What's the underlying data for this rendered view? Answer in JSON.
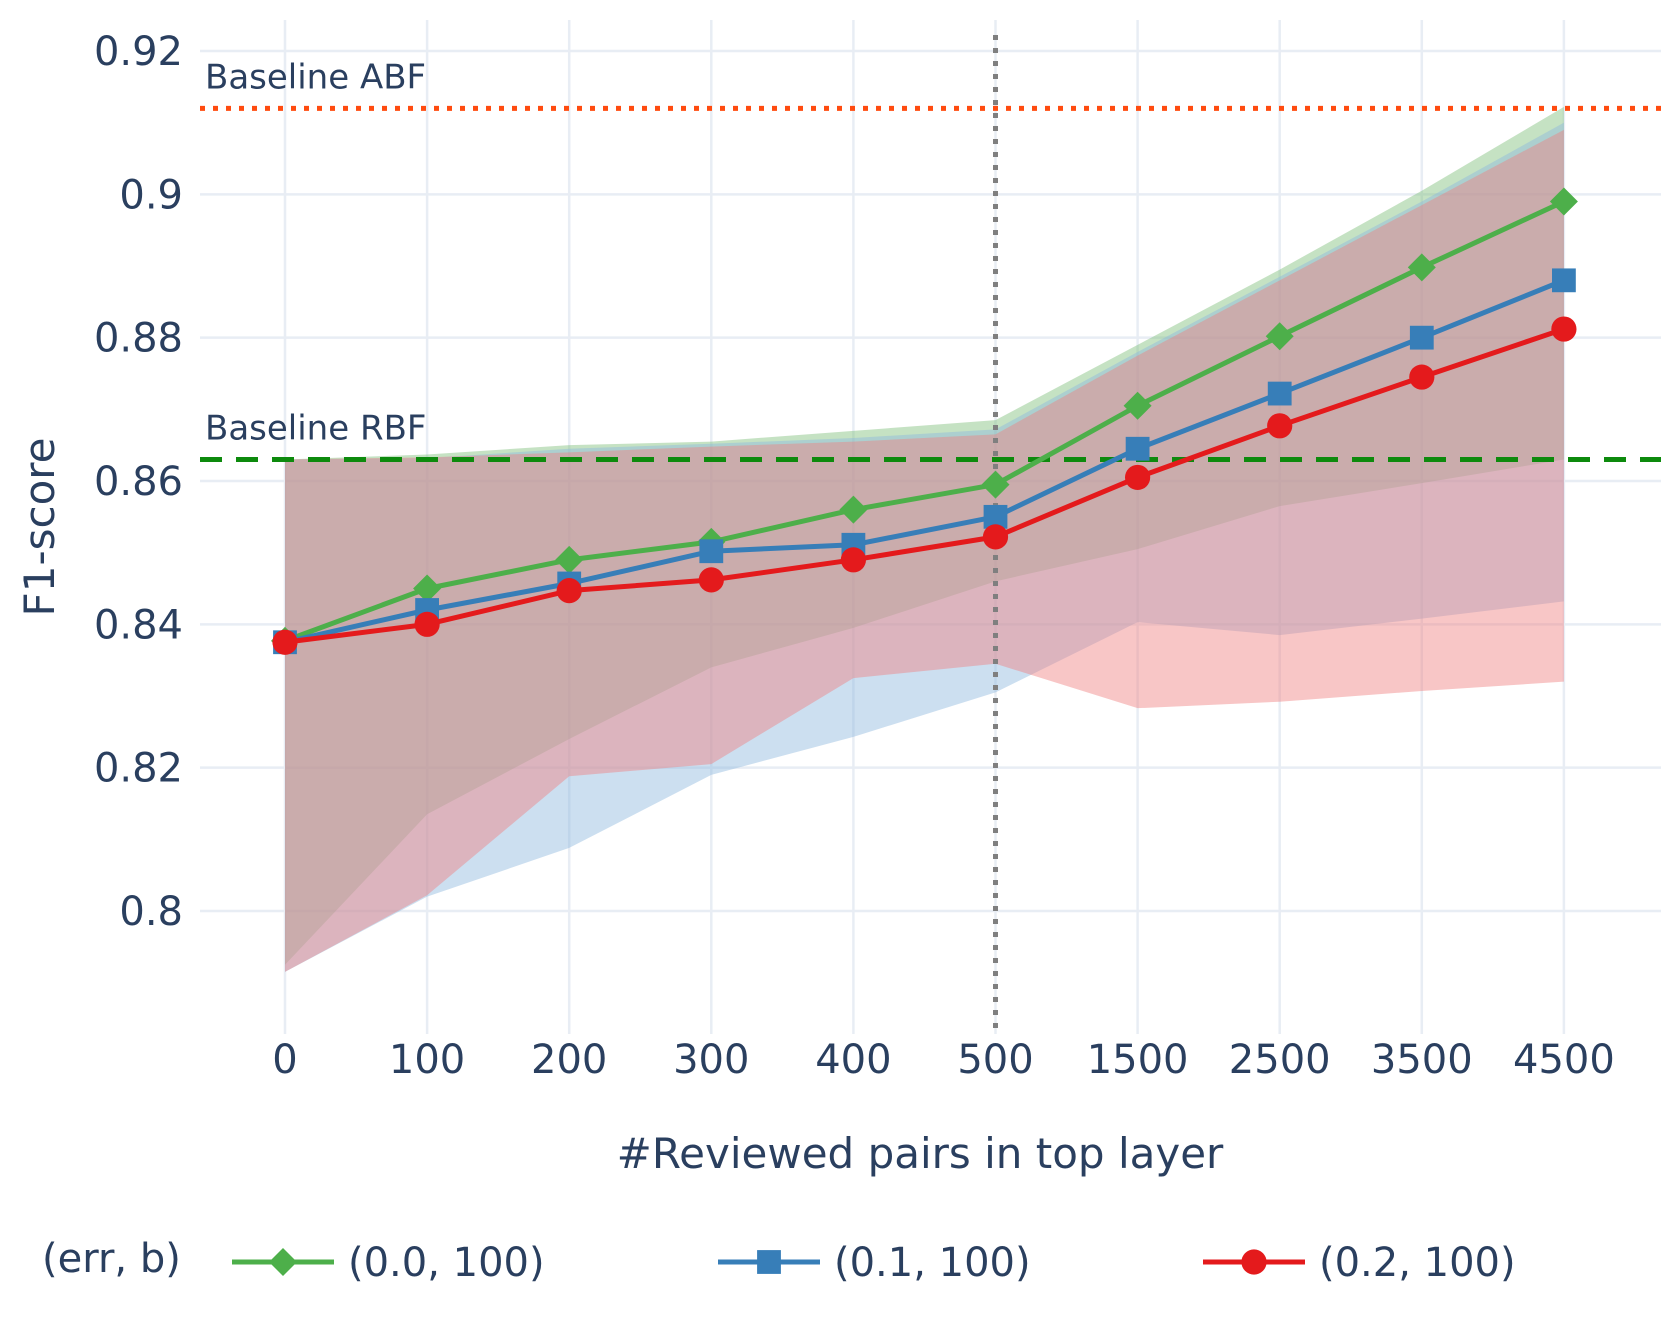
{
  "chart_data": {
    "type": "line",
    "xlabel": "#Reviewed pairs in top layer",
    "ylabel": "F1-score",
    "categories": [
      "0",
      "100",
      "200",
      "300",
      "400",
      "500",
      "1500",
      "2500",
      "3500",
      "4500"
    ],
    "y_ticks": [
      0.8,
      0.82,
      0.84,
      0.86,
      0.88,
      0.9,
      0.92
    ],
    "y_tick_labels": [
      "0.8",
      "0.82",
      "0.84",
      "0.86",
      "0.88",
      "0.9",
      "0.92"
    ],
    "ylim": [
      0.7855,
      0.9215
    ],
    "grid": true,
    "legend": {
      "position": "bottom",
      "title": "(err, b)"
    },
    "reference_lines": [
      {
        "name": "Baseline ABF",
        "orientation": "horizontal",
        "y": 0.912,
        "color": "#ff4b0f",
        "style": "dotted"
      },
      {
        "name": "Baseline RBF",
        "orientation": "horizontal",
        "y": 0.863,
        "color": "#0d8a0d",
        "style": "dashed"
      },
      {
        "orientation": "vertical",
        "x": "500",
        "color": "#7f7f7f",
        "style": "dotted"
      }
    ],
    "series": [
      {
        "name": "(0.0, 100)",
        "color": "#4daf4a",
        "band_color": "#7fbf7b",
        "marker": "diamond",
        "values": [
          0.8377,
          0.845,
          0.849,
          0.8515,
          0.856,
          0.8595,
          0.8705,
          0.8802,
          0.8898,
          0.899
        ],
        "upper": [
          0.863,
          0.8637,
          0.865,
          0.8655,
          0.867,
          0.8685,
          0.879,
          0.8895,
          0.9005,
          0.9122
        ],
        "lower": [
          0.7925,
          0.8135,
          0.824,
          0.834,
          0.8395,
          0.846,
          0.8505,
          0.8565,
          0.8597,
          0.863
        ]
      },
      {
        "name": "(0.1, 100)",
        "color": "#377eb8",
        "band_color": "#8fb8de",
        "marker": "square",
        "values": [
          0.8375,
          0.842,
          0.8457,
          0.8502,
          0.8511,
          0.855,
          0.8645,
          0.8722,
          0.88,
          0.888
        ],
        "upper": [
          0.863,
          0.8632,
          0.8645,
          0.8652,
          0.866,
          0.8672,
          0.878,
          0.8885,
          0.899,
          0.91
        ],
        "lower": [
          0.7915,
          0.802,
          0.8088,
          0.819,
          0.8243,
          0.8305,
          0.8403,
          0.8385,
          0.8408,
          0.8432
        ]
      },
      {
        "name": "(0.2, 100)",
        "color": "#e41a1c",
        "band_color": "#f08080",
        "marker": "circle",
        "values": [
          0.8375,
          0.84,
          0.8447,
          0.8462,
          0.849,
          0.8522,
          0.8605,
          0.8677,
          0.8745,
          0.8812
        ],
        "upper": [
          0.863,
          0.8633,
          0.864,
          0.8648,
          0.8655,
          0.8665,
          0.8775,
          0.888,
          0.8985,
          0.909
        ],
        "lower": [
          0.7915,
          0.8022,
          0.8188,
          0.8205,
          0.8325,
          0.8345,
          0.8283,
          0.8292,
          0.8307,
          0.832
        ]
      }
    ]
  }
}
